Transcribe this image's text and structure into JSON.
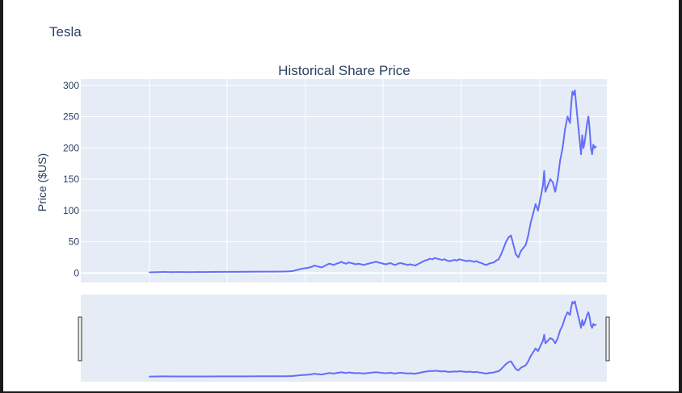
{
  "app": {
    "title": "Tesla"
  },
  "chart_data": {
    "type": "line",
    "title": "Historical Share Price",
    "xlabel": "",
    "ylabel": "Price ($US)",
    "ylim": [
      -15,
      310
    ],
    "y_ticks": [
      0,
      50,
      100,
      150,
      200,
      250,
      300
    ],
    "x_range_label_free": true,
    "range_slider": true,
    "grid": true,
    "series": [
      {
        "values": [
          [
            0,
            1.2
          ],
          [
            3,
            1.4
          ],
          [
            6,
            1.8
          ],
          [
            9,
            1.5
          ],
          [
            12,
            1.6
          ],
          [
            16,
            1.5
          ],
          [
            20,
            1.6
          ],
          [
            25,
            1.7
          ],
          [
            30,
            1.9
          ],
          [
            35,
            2.0
          ],
          [
            40,
            2.1
          ],
          [
            45,
            2.2
          ],
          [
            50,
            2.3
          ],
          [
            55,
            2.4
          ],
          [
            58,
            3
          ],
          [
            60,
            5
          ],
          [
            62,
            7
          ],
          [
            64,
            8
          ],
          [
            66,
            10
          ],
          [
            67,
            12
          ],
          [
            68,
            11
          ],
          [
            69,
            10
          ],
          [
            70,
            9
          ],
          [
            71,
            11
          ],
          [
            72,
            13
          ],
          [
            73,
            15
          ],
          [
            74,
            14
          ],
          [
            75,
            13
          ],
          [
            76,
            15
          ],
          [
            77,
            16
          ],
          [
            78,
            18
          ],
          [
            79,
            16
          ],
          [
            80,
            15
          ],
          [
            81,
            17
          ],
          [
            82,
            16
          ],
          [
            83,
            15
          ],
          [
            84,
            14
          ],
          [
            85,
            15
          ],
          [
            86,
            14
          ],
          [
            87,
            13
          ],
          [
            88,
            14
          ],
          [
            89,
            15
          ],
          [
            90,
            16
          ],
          [
            91,
            17
          ],
          [
            92,
            18
          ],
          [
            93,
            17
          ],
          [
            94,
            16
          ],
          [
            95,
            15
          ],
          [
            96,
            14
          ],
          [
            97,
            15
          ],
          [
            98,
            16
          ],
          [
            99,
            14
          ],
          [
            100,
            13
          ],
          [
            101,
            15
          ],
          [
            102,
            16
          ],
          [
            103,
            15
          ],
          [
            104,
            14
          ],
          [
            105,
            13
          ],
          [
            106,
            14
          ],
          [
            107,
            13
          ],
          [
            108,
            12
          ],
          [
            109,
            14
          ],
          [
            110,
            16
          ],
          [
            111,
            18
          ],
          [
            112,
            20
          ],
          [
            113,
            21
          ],
          [
            114,
            23
          ],
          [
            115,
            22
          ],
          [
            116,
            24
          ],
          [
            117,
            23
          ],
          [
            118,
            22
          ],
          [
            119,
            21
          ],
          [
            120,
            22
          ],
          [
            121,
            20
          ],
          [
            122,
            19
          ],
          [
            123,
            20
          ],
          [
            124,
            21
          ],
          [
            125,
            20
          ],
          [
            126,
            22
          ],
          [
            127,
            21
          ],
          [
            128,
            20
          ],
          [
            129,
            19
          ],
          [
            130,
            20
          ],
          [
            131,
            19
          ],
          [
            132,
            18
          ],
          [
            133,
            19
          ],
          [
            134,
            17
          ],
          [
            135,
            16
          ],
          [
            136,
            14
          ],
          [
            137,
            13
          ],
          [
            138,
            15
          ],
          [
            139,
            16
          ],
          [
            140,
            17
          ],
          [
            141,
            20
          ],
          [
            142,
            22
          ],
          [
            143,
            30
          ],
          [
            144,
            40
          ],
          [
            145,
            50
          ],
          [
            146,
            57
          ],
          [
            147,
            60
          ],
          [
            148,
            45
          ],
          [
            149,
            30
          ],
          [
            150,
            25
          ],
          [
            151,
            35
          ],
          [
            152,
            40
          ],
          [
            153,
            45
          ],
          [
            154,
            60
          ],
          [
            155,
            80
          ],
          [
            156,
            95
          ],
          [
            157,
            110
          ],
          [
            158,
            100
          ],
          [
            159,
            120
          ],
          [
            160,
            140
          ],
          [
            160.5,
            163
          ],
          [
            161,
            130
          ],
          [
            162,
            140
          ],
          [
            163,
            150
          ],
          [
            164,
            145
          ],
          [
            165,
            130
          ],
          [
            166,
            150
          ],
          [
            167,
            180
          ],
          [
            168,
            200
          ],
          [
            169,
            230
          ],
          [
            170,
            250
          ],
          [
            171,
            240
          ],
          [
            171.5,
            270
          ],
          [
            172,
            290
          ],
          [
            172.5,
            285
          ],
          [
            173,
            292
          ],
          [
            173.5,
            270
          ],
          [
            174,
            250
          ],
          [
            174.5,
            230
          ],
          [
            175,
            210
          ],
          [
            175.5,
            190
          ],
          [
            176,
            220
          ],
          [
            176.5,
            200
          ],
          [
            177,
            210
          ],
          [
            178,
            240
          ],
          [
            178.5,
            250
          ],
          [
            179,
            230
          ],
          [
            179.5,
            200
          ],
          [
            180,
            190
          ],
          [
            180.5,
            205
          ],
          [
            181,
            200
          ],
          [
            181.5,
            202
          ]
        ]
      }
    ]
  }
}
